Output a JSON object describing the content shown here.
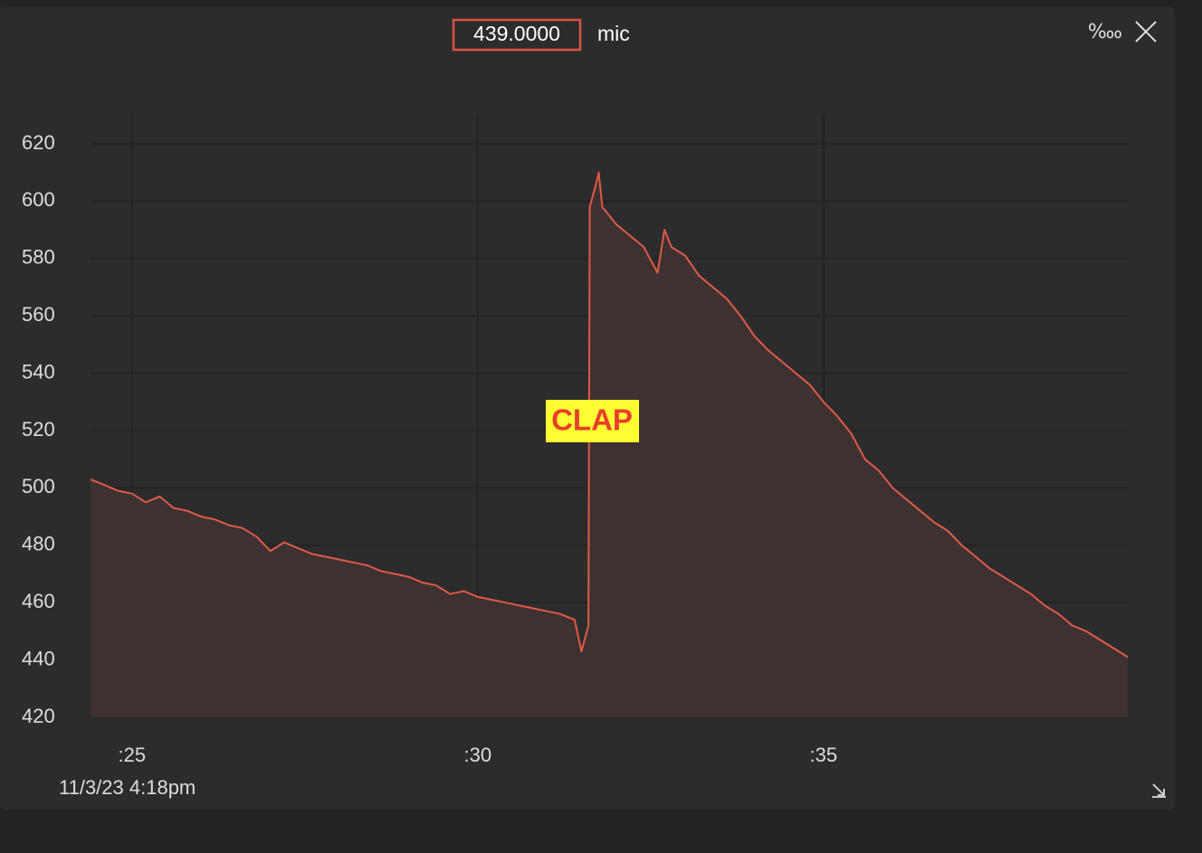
{
  "chart_data": {
    "type": "line",
    "current_value": "439.0000",
    "series_label": "mic",
    "unit_button": "‱",
    "date_label": "11/3/23 4:18pm",
    "annotation": "CLAP",
    "x": [
      24.4,
      24.6,
      24.8,
      25.0,
      25.2,
      25.4,
      25.6,
      25.8,
      26.0,
      26.2,
      26.4,
      26.6,
      26.8,
      27.0,
      27.2,
      27.4,
      27.6,
      27.8,
      28.0,
      28.2,
      28.4,
      28.6,
      28.8,
      29.0,
      29.2,
      29.4,
      29.6,
      29.8,
      30.0,
      30.2,
      30.4,
      30.6,
      30.8,
      31.0,
      31.2,
      31.4,
      31.5,
      31.6,
      31.62,
      31.7,
      31.75,
      31.8,
      32.0,
      32.2,
      32.4,
      32.6,
      32.7,
      32.8,
      33.0,
      33.2,
      33.4,
      33.6,
      33.8,
      34.0,
      34.2,
      34.4,
      34.6,
      34.8,
      35.0,
      35.2,
      35.4,
      35.6,
      35.8,
      36.0,
      36.2,
      36.4,
      36.6,
      36.8,
      37.0,
      37.2,
      37.4,
      37.6,
      37.8,
      38.0,
      38.2,
      38.4,
      38.6,
      38.8,
      39.0,
      39.2,
      39.4
    ],
    "series": [
      {
        "color": "#e05a47",
        "fill": "#3d3131",
        "values": [
          503,
          501,
          499,
          498,
          495,
          497,
          493,
          492,
          490,
          489,
          487,
          486,
          483,
          478,
          481,
          479,
          477,
          476,
          475,
          474,
          473,
          471,
          470,
          469,
          467,
          466,
          463,
          464,
          462,
          461,
          460,
          459,
          458,
          457,
          456,
          454,
          443,
          452,
          598,
          605,
          610,
          598,
          592,
          588,
          584,
          575,
          590,
          584,
          581,
          574,
          570,
          566,
          560,
          553,
          548,
          544,
          540,
          536,
          530,
          525,
          519,
          510,
          506,
          500,
          496,
          492,
          488,
          485,
          480,
          476,
          472,
          469,
          466,
          463,
          459,
          456,
          452,
          450,
          447,
          444,
          441
        ]
      }
    ],
    "xlim": [
      24.4,
      39.4
    ],
    "xticks": [
      {
        "value": 25,
        "label": ":25"
      },
      {
        "value": 30,
        "label": ":30"
      },
      {
        "value": 35,
        "label": ":35"
      }
    ],
    "ylim": [
      420,
      620
    ],
    "yticks": [
      420,
      440,
      460,
      480,
      500,
      520,
      540,
      560,
      580,
      600,
      620
    ],
    "grid": true
  }
}
